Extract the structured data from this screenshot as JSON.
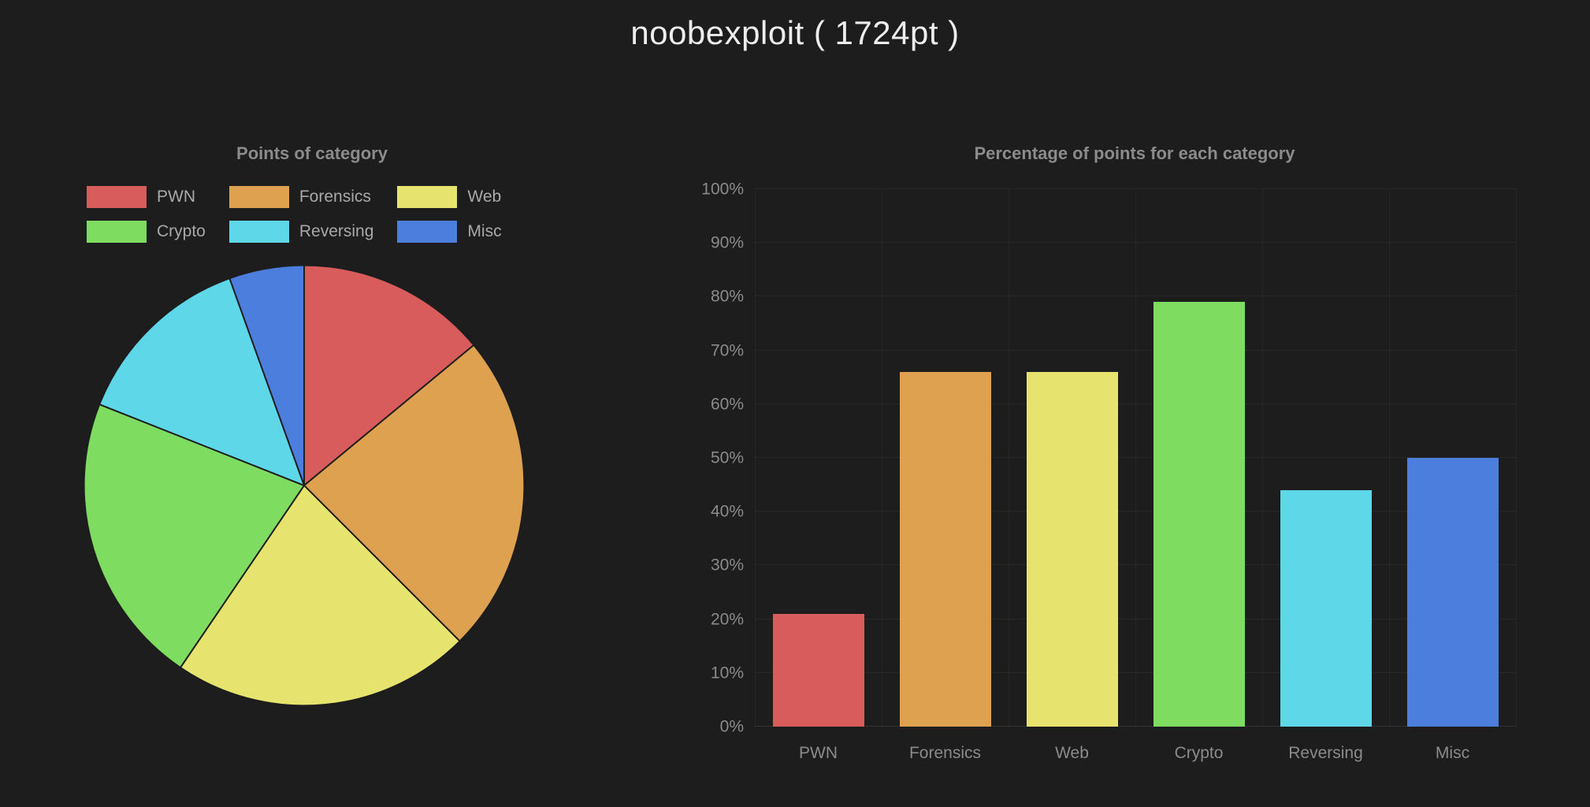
{
  "page": {
    "title": "noobexploit ( 1724pt )"
  },
  "theme": {
    "background": "#1d1d1d",
    "title_color": "#ededed",
    "chart_title_color": "#8b8b8b",
    "legend_text_color": "#a9a9a9",
    "axis_text_color": "#8b8b8b",
    "pie_border_color": "#1d1d1d"
  },
  "categories": [
    "PWN",
    "Forensics",
    "Web",
    "Crypto",
    "Reversing",
    "Misc"
  ],
  "category_colors": {
    "PWN": "#d85c5c",
    "Forensics": "#dda14f",
    "Web": "#e6e46e",
    "Crypto": "#7edc60",
    "Reversing": "#5ed7e8",
    "Misc": "#4c7ede"
  },
  "chart_data": [
    {
      "type": "pie",
      "title": "Points of category",
      "categories": [
        "PWN",
        "Forensics",
        "Web",
        "Crypto",
        "Reversing",
        "Misc"
      ],
      "values": [
        14,
        23.5,
        22,
        21.5,
        13.5,
        5.5
      ],
      "unit": "percent_of_total_points",
      "start_angle_deg": 0,
      "direction": "clockwise",
      "legend_position": "top",
      "legend_rows": [
        [
          "PWN",
          "Forensics",
          "Web"
        ],
        [
          "Crypto",
          "Reversing",
          "Misc"
        ]
      ]
    },
    {
      "type": "bar",
      "title": "Percentage of points for each category",
      "categories": [
        "PWN",
        "Forensics",
        "Web",
        "Crypto",
        "Reversing",
        "Misc"
      ],
      "values": [
        21,
        66,
        66,
        79,
        44,
        50
      ],
      "ytick_labels": [
        "0%",
        "10%",
        "20%",
        "30%",
        "40%",
        "50%",
        "60%",
        "70%",
        "80%",
        "90%",
        "100%"
      ],
      "ylim": [
        0,
        100
      ],
      "ytick_step": 10,
      "ytick_suffix": "%",
      "grid": true,
      "legend": false
    }
  ]
}
